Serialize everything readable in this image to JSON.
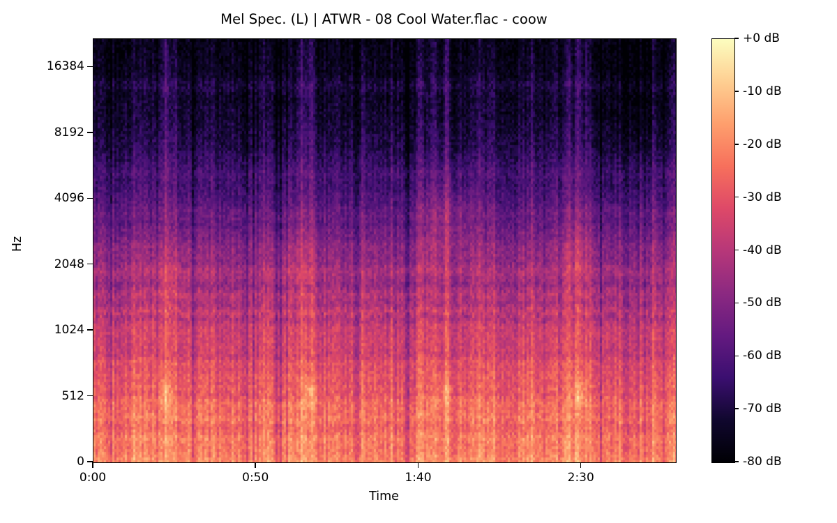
{
  "chart_data": {
    "type": "heatmap",
    "subtype": "mel_spectrogram",
    "title": "Mel Spec. (L) | ATWR - 08 Cool Water.flac - coow",
    "xlabel": "Time",
    "ylabel": "Hz",
    "x_ticks": [
      {
        "label": "0:00",
        "seconds": 0
      },
      {
        "label": "0:50",
        "seconds": 50
      },
      {
        "label": "1:40",
        "seconds": 100
      },
      {
        "label": "2:30",
        "seconds": 150
      }
    ],
    "x_range_seconds": [
      0,
      179
    ],
    "y_ticks": [
      {
        "label": "16384",
        "hz": 16384
      },
      {
        "label": "8192",
        "hz": 8192
      },
      {
        "label": "4096",
        "hz": 4096
      },
      {
        "label": "2048",
        "hz": 2048
      },
      {
        "label": "1024",
        "hz": 1024
      },
      {
        "label": "512",
        "hz": 512
      },
      {
        "label": "0",
        "hz": 0
      }
    ],
    "y_range_hz": [
      0,
      22050
    ],
    "y_axis_scale": "symlog: linear 0-512 Hz, then one even step per octave",
    "grid": false,
    "colorbar": {
      "tick_labels": [
        "+0 dB",
        "-10 dB",
        "-20 dB",
        "-30 dB",
        "-40 dB",
        "-50 dB",
        "-60 dB",
        "-70 dB",
        "-80 dB"
      ],
      "db_max": 0,
      "db_min": -80,
      "colormap": "magma",
      "colormap_stops": [
        [
          0.0,
          "#000004"
        ],
        [
          0.1,
          "#10072E"
        ],
        [
          0.2,
          "#3B0F70"
        ],
        [
          0.3,
          "#641A80"
        ],
        [
          0.4,
          "#8C2981"
        ],
        [
          0.5,
          "#B73779"
        ],
        [
          0.6,
          "#DE4968"
        ],
        [
          0.7,
          "#F7705C"
        ],
        [
          0.8,
          "#FE9F6D"
        ],
        [
          0.9,
          "#FECF92"
        ],
        [
          1.0,
          "#FCFDBF"
        ]
      ]
    },
    "intensity_profile_db": [
      [
        0.0,
        -77
      ],
      [
        0.05,
        -76
      ],
      [
        0.085,
        -74
      ],
      [
        0.115,
        -70.5
      ],
      [
        0.15,
        -73.5
      ],
      [
        0.21,
        -71
      ],
      [
        0.27,
        -66.5
      ],
      [
        0.34,
        -61.5
      ],
      [
        0.42,
        -55.5
      ],
      [
        0.5,
        -49.5
      ],
      [
        0.58,
        -44
      ],
      [
        0.66,
        -38.5
      ],
      [
        0.74,
        -33.5
      ],
      [
        0.82,
        -29
      ],
      [
        0.9,
        -25
      ],
      [
        0.97,
        -21
      ],
      [
        1.0,
        -19
      ]
    ],
    "transient_events": [
      {
        "t": 0.084,
        "boost_db": 5,
        "width": 0.004
      },
      {
        "t": 0.124,
        "boost_db": 15,
        "width": 0.0065
      },
      {
        "t": 0.14,
        "boost_db": 8,
        "width": 0.005
      },
      {
        "t": 0.2,
        "boost_db": 4,
        "width": 0.004
      },
      {
        "t": 0.232,
        "boost_db": 5,
        "width": 0.004
      },
      {
        "t": 0.29,
        "boost_db": 5,
        "width": 0.004
      },
      {
        "t": 0.355,
        "boost_db": 11,
        "width": 0.0055
      },
      {
        "t": 0.372,
        "boost_db": 14,
        "width": 0.0065
      },
      {
        "t": 0.42,
        "boost_db": 4,
        "width": 0.004
      },
      {
        "t": 0.463,
        "boost_db": 6,
        "width": 0.004
      },
      {
        "t": 0.52,
        "boost_db": 5,
        "width": 0.004
      },
      {
        "t": 0.56,
        "boost_db": 8,
        "width": 0.005
      },
      {
        "t": 0.582,
        "boost_db": 10,
        "width": 0.0055
      },
      {
        "t": 0.605,
        "boost_db": 12,
        "width": 0.006
      },
      {
        "t": 0.66,
        "boost_db": 5,
        "width": 0.004
      },
      {
        "t": 0.68,
        "boost_db": 6,
        "width": 0.004
      },
      {
        "t": 0.751,
        "boost_db": 6,
        "width": 0.004
      },
      {
        "t": 0.79,
        "boost_db": 5,
        "width": 0.004
      },
      {
        "t": 0.815,
        "boost_db": 8,
        "width": 0.005
      },
      {
        "t": 0.832,
        "boost_db": 14,
        "width": 0.0065
      },
      {
        "t": 0.846,
        "boost_db": 9,
        "width": 0.005
      },
      {
        "t": 0.918,
        "boost_db": 5,
        "width": 0.004
      },
      {
        "t": 0.96,
        "boost_db": 6,
        "width": 0.004
      },
      {
        "t": 0.993,
        "boost_db": 7,
        "width": 0.004
      }
    ],
    "hot_spots": [
      {
        "t": 0.124,
        "v": 0.835,
        "boost_db": 11,
        "tw": 0.011,
        "vw": 0.03
      },
      {
        "t": 0.371,
        "v": 0.835,
        "boost_db": 11,
        "tw": 0.011,
        "vw": 0.03
      },
      {
        "t": 0.603,
        "v": 0.835,
        "boost_db": 9,
        "tw": 0.011,
        "vw": 0.03
      },
      {
        "t": 0.833,
        "v": 0.835,
        "boost_db": 11,
        "tw": 0.011,
        "vw": 0.03
      },
      {
        "t": 0.605,
        "v": 0.42,
        "boost_db": 6.5,
        "tw": 0.05,
        "vw": 0.1
      },
      {
        "t": 0.35,
        "v": 0.52,
        "boost_db": 4,
        "tw": 0.035,
        "vw": 0.09
      },
      {
        "t": 0.83,
        "v": 0.5,
        "boost_db": 5,
        "tw": 0.025,
        "vw": 0.09
      },
      {
        "t": 0.13,
        "v": 0.58,
        "boost_db": 4,
        "tw": 0.03,
        "vw": 0.08
      },
      {
        "t": 0.93,
        "v": 0.13,
        "boost_db": -3.5,
        "tw": 0.06,
        "vw": 0.16
      }
    ],
    "noise_model": {
      "cell_db": 9,
      "column_db": 8,
      "row_band_db": 10,
      "seed": 1337
    }
  },
  "colors": {
    "background": "#ffffff",
    "text": "#000000",
    "spine": "#000000"
  }
}
